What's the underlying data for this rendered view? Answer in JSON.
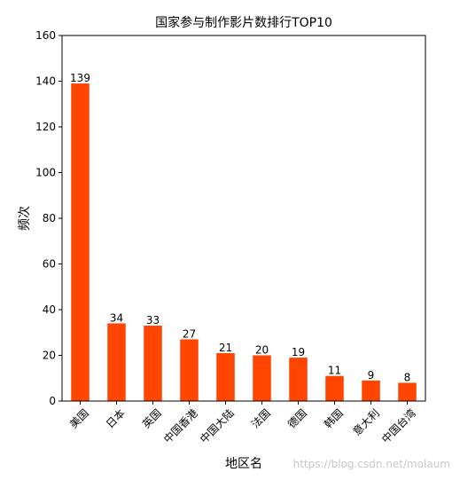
{
  "chart_data": {
    "type": "bar",
    "title": "国家参与制作影片数排行TOP10",
    "xlabel": "地区名",
    "ylabel": "频次",
    "categories": [
      "美国",
      "日本",
      "英国",
      "中国香港",
      "中国大陆",
      "法国",
      "德国",
      "韩国",
      "意大利",
      "中国台湾"
    ],
    "values": [
      139,
      34,
      33,
      27,
      21,
      20,
      19,
      11,
      9,
      8
    ],
    "ylim": [
      0,
      160
    ],
    "yticks": [
      0,
      20,
      40,
      60,
      80,
      100,
      120,
      140,
      160
    ],
    "bar_color": "#ff4500",
    "grid": false,
    "legend": "none",
    "data_labels": true
  },
  "watermark": "https://blog.csdn.net/molaum"
}
